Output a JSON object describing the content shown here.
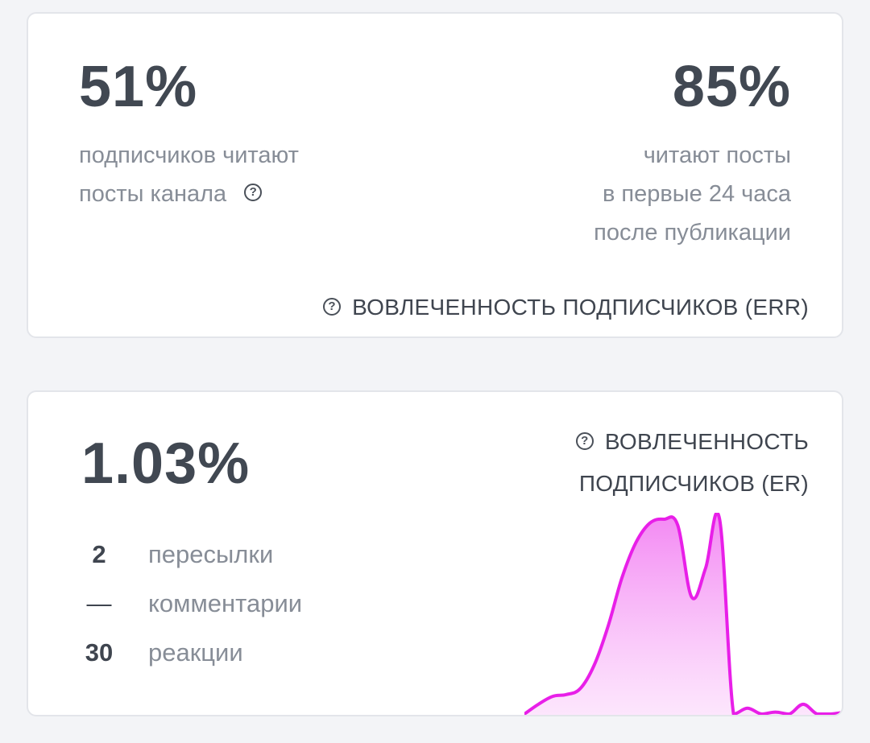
{
  "err_card": {
    "left_value": "51%",
    "left_desc": [
      "подписчиков читают",
      "посты канала"
    ],
    "right_value": "85%",
    "right_desc": [
      "читают посты",
      "в первые 24 часа",
      "после публикации"
    ],
    "footer_label": "ВОВЛЕЧЕННОСТЬ ПОДПИСЧИКОВ (ERR)",
    "help_icon": "question-circle-icon"
  },
  "er_card": {
    "value": "1.03%",
    "heading": [
      "ВОВЛЕЧЕННОСТЬ",
      "ПОДПИСЧИКОВ (ER)"
    ],
    "help_icon": "question-circle-icon",
    "stats": [
      {
        "value": "2",
        "label": "пересылки"
      },
      {
        "value": "—",
        "label": "комментарии"
      },
      {
        "value": "30",
        "label": "реакции"
      }
    ]
  },
  "colors": {
    "background": "#f3f4f7",
    "card": "#ffffff",
    "value_text": "#414852",
    "muted_text": "#878d97",
    "accent": "#e81fe8"
  },
  "chart_data": {
    "type": "area",
    "y": [
      0,
      0.05,
      0.09,
      0.1,
      0.13,
      0.25,
      0.45,
      0.7,
      0.88,
      0.98,
      1.0,
      0.97,
      0.6,
      0.75,
      1.0,
      0.0,
      0.03,
      0.0,
      0.01,
      0.0,
      0.05,
      0.0,
      0.0,
      0.01
    ],
    "grid": false,
    "legend": "none"
  }
}
